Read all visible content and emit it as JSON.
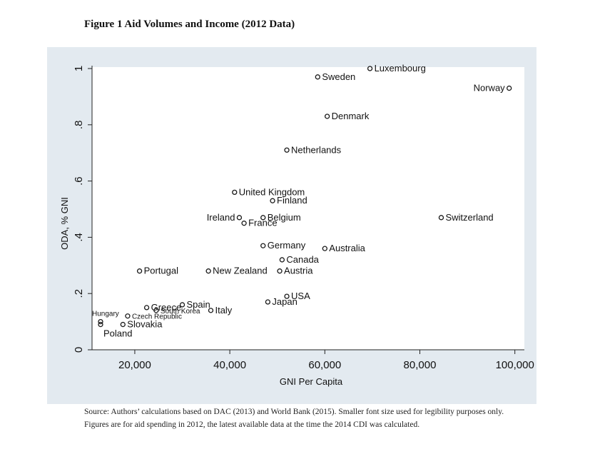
{
  "figure": {
    "title": "Figure 1 Aid Volumes and Income (2012 Data)",
    "source_note": "Source: Authors’ calculations based on DAC (2013) and World Bank (2015). Smaller font size used for legibility purposes only. Figures are for aid spending in 2012, the latest available data at the time the 2014 CDI was calculated."
  },
  "chart_data": {
    "type": "scatter",
    "xlabel": "GNI Per Capita",
    "ylabel": "ODA, % GNI",
    "xlim": [
      11000,
      102000
    ],
    "ylim": [
      0,
      1
    ],
    "xticks": [
      20000,
      40000,
      60000,
      80000,
      100000
    ],
    "xtick_labels": [
      "20,000",
      "40,000",
      "60,000",
      "80,000",
      "100,000"
    ],
    "yticks": [
      0,
      0.2,
      0.4,
      0.6,
      0.8,
      1
    ],
    "ytick_labels": [
      "0",
      ".2",
      ".4",
      ".6",
      ".8",
      "1"
    ],
    "grid": false,
    "marker_color": "#1a1a1a",
    "points": [
      {
        "label": "Luxembourg",
        "x": 69500,
        "y": 1.0,
        "pos": "right",
        "size": "normal"
      },
      {
        "label": "Sweden",
        "x": 58500,
        "y": 0.97,
        "pos": "right",
        "size": "normal"
      },
      {
        "label": "Norway",
        "x": 98800,
        "y": 0.93,
        "pos": "left",
        "size": "normal"
      },
      {
        "label": "Denmark",
        "x": 60500,
        "y": 0.83,
        "pos": "right",
        "size": "normal"
      },
      {
        "label": "Netherlands",
        "x": 52000,
        "y": 0.71,
        "pos": "right",
        "size": "normal"
      },
      {
        "label": "United Kingdom",
        "x": 41000,
        "y": 0.56,
        "pos": "right",
        "size": "normal"
      },
      {
        "label": "Finland",
        "x": 49000,
        "y": 0.53,
        "pos": "right",
        "size": "normal"
      },
      {
        "label": "Ireland",
        "x": 42000,
        "y": 0.47,
        "pos": "left",
        "size": "normal"
      },
      {
        "label": "Belgium",
        "x": 47000,
        "y": 0.47,
        "pos": "right",
        "size": "normal"
      },
      {
        "label": "France",
        "x": 43000,
        "y": 0.45,
        "pos": "right",
        "size": "normal"
      },
      {
        "label": "Switzerland",
        "x": 84500,
        "y": 0.47,
        "pos": "right",
        "size": "normal"
      },
      {
        "label": "Germany",
        "x": 47000,
        "y": 0.37,
        "pos": "right",
        "size": "normal"
      },
      {
        "label": "Australia",
        "x": 60000,
        "y": 0.36,
        "pos": "right",
        "size": "normal"
      },
      {
        "label": "Canada",
        "x": 51000,
        "y": 0.32,
        "pos": "right",
        "size": "normal"
      },
      {
        "label": "Portugal",
        "x": 21000,
        "y": 0.28,
        "pos": "right",
        "size": "normal"
      },
      {
        "label": "New Zealand",
        "x": 35500,
        "y": 0.28,
        "pos": "right",
        "size": "normal"
      },
      {
        "label": "Austria",
        "x": 50500,
        "y": 0.28,
        "pos": "right",
        "size": "normal"
      },
      {
        "label": "USA",
        "x": 52000,
        "y": 0.19,
        "pos": "right",
        "size": "normal"
      },
      {
        "label": "Japan",
        "x": 48000,
        "y": 0.17,
        "pos": "right",
        "size": "normal"
      },
      {
        "label": "Greece",
        "x": 22500,
        "y": 0.15,
        "pos": "right",
        "size": "normal"
      },
      {
        "label": "Spain",
        "x": 30000,
        "y": 0.16,
        "pos": "right",
        "size": "normal"
      },
      {
        "label": "South Korea",
        "x": 24500,
        "y": 0.14,
        "pos": "right",
        "size": "small"
      },
      {
        "label": "Italy",
        "x": 36000,
        "y": 0.14,
        "pos": "right",
        "size": "normal"
      },
      {
        "label": "Czech Republic",
        "x": 18500,
        "y": 0.12,
        "pos": "right",
        "size": "small"
      },
      {
        "label": "Hungary",
        "x": 12800,
        "y": 0.1,
        "pos": "top",
        "size": "small"
      },
      {
        "label": "Poland",
        "x": 12800,
        "y": 0.09,
        "pos": "below-right",
        "size": "normal"
      },
      {
        "label": "Slovakia",
        "x": 17500,
        "y": 0.09,
        "pos": "right",
        "size": "normal"
      }
    ]
  }
}
